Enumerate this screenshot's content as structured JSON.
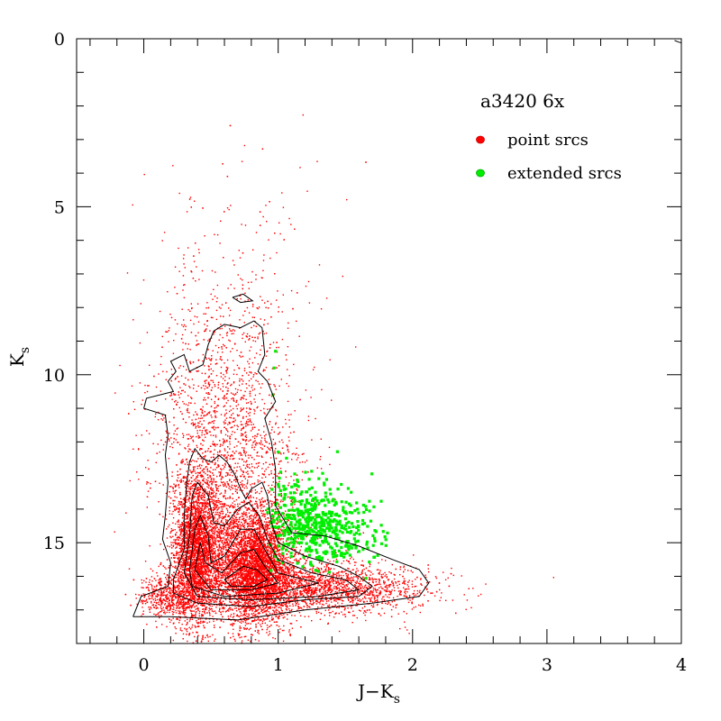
{
  "chart_data": {
    "type": "scatter",
    "title": "a3420 6x",
    "xlabel": "J−K",
    "xlabel_sub": "s",
    "ylabel": "K",
    "ylabel_sub": "s",
    "xlim": [
      -0.5,
      4
    ],
    "ylim": [
      18,
      0
    ],
    "y_inverted": true,
    "x_ticks": [
      0,
      1,
      2,
      3,
      4
    ],
    "x_tick_labels": [
      "0",
      "1",
      "2",
      "3",
      "4"
    ],
    "y_ticks": [
      0,
      5,
      10,
      15
    ],
    "y_tick_labels": [
      "0",
      "5",
      "10",
      "15"
    ],
    "grid": false,
    "legend_position": "top-right",
    "legend": [
      {
        "label": "point srcs",
        "color": "#ff0000"
      },
      {
        "label": "extended srcs",
        "color": "#00ee00"
      }
    ],
    "series": [
      {
        "name": "point srcs",
        "color": "#ff0000",
        "marker": "dot",
        "clusters": [
          {
            "cx": 0.4,
            "cy": 15.2,
            "sx": 0.09,
            "sy": 1.1,
            "w": 0.26
          },
          {
            "cx": 0.82,
            "cy": 15.7,
            "sx": 0.14,
            "sy": 0.85,
            "w": 0.34
          },
          {
            "cx": 0.65,
            "cy": 12.8,
            "sx": 0.26,
            "sy": 1.5,
            "w": 0.12
          },
          {
            "cx": 1.15,
            "cy": 16.3,
            "sx": 0.35,
            "sy": 0.35,
            "w": 0.12
          },
          {
            "cx": 1.55,
            "cy": 16.4,
            "sx": 0.35,
            "sy": 0.4,
            "w": 0.06
          },
          {
            "cx": 0.55,
            "cy": 9.8,
            "sx": 0.25,
            "sy": 1.3,
            "w": 0.04
          },
          {
            "cx": 0.7,
            "cy": 7.0,
            "sx": 0.35,
            "sy": 1.6,
            "w": 0.015
          },
          {
            "cx": 0.2,
            "cy": 16.6,
            "sx": 0.12,
            "sy": 0.35,
            "w": 0.05
          }
        ]
      },
      {
        "name": "extended srcs",
        "color": "#00ee00",
        "marker": "dot",
        "clusters": [
          {
            "cx": 1.22,
            "cy": 14.3,
            "sx": 0.2,
            "sy": 0.65,
            "w": 0.75
          },
          {
            "cx": 1.45,
            "cy": 14.9,
            "sx": 0.2,
            "sy": 0.4,
            "w": 0.25
          }
        ],
        "extra_points": [
          {
            "x": 0.98,
            "y": 9.3
          },
          {
            "x": 0.97,
            "y": 9.8
          },
          {
            "x": 0.96,
            "y": 10.6
          },
          {
            "x": 1.0,
            "y": 12.3
          }
        ]
      }
    ],
    "density_contours": [
      [
        [
          -0.08,
          17.2
        ],
        [
          -0.02,
          16.6
        ],
        [
          0.18,
          16.3
        ],
        [
          0.2,
          15.6
        ],
        [
          0.14,
          14.9
        ],
        [
          0.16,
          14.2
        ],
        [
          0.18,
          13.2
        ],
        [
          0.16,
          12.4
        ],
        [
          0.18,
          11.8
        ],
        [
          0.16,
          11.2
        ],
        [
          0.0,
          11.0
        ],
        [
          0.02,
          10.7
        ],
        [
          0.22,
          10.5
        ],
        [
          0.18,
          10.2
        ],
        [
          0.24,
          9.9
        ],
        [
          0.2,
          9.6
        ],
        [
          0.3,
          9.4
        ],
        [
          0.34,
          9.9
        ],
        [
          0.44,
          9.7
        ],
        [
          0.48,
          9.1
        ],
        [
          0.52,
          8.7
        ],
        [
          0.6,
          8.5
        ],
        [
          0.72,
          8.6
        ],
        [
          0.82,
          8.4
        ],
        [
          0.88,
          8.6
        ],
        [
          0.9,
          9.4
        ],
        [
          0.85,
          9.9
        ],
        [
          0.92,
          10.2
        ],
        [
          0.98,
          10.8
        ],
        [
          0.9,
          11.3
        ],
        [
          0.95,
          12.0
        ],
        [
          0.98,
          12.8
        ],
        [
          0.98,
          13.9
        ],
        [
          1.1,
          14.7
        ],
        [
          1.35,
          14.8
        ],
        [
          1.6,
          15.1
        ],
        [
          1.85,
          15.5
        ],
        [
          2.05,
          15.8
        ],
        [
          2.12,
          16.2
        ],
        [
          2.05,
          16.6
        ],
        [
          1.7,
          16.8
        ],
        [
          1.2,
          17.0
        ],
        [
          0.7,
          17.3
        ],
        [
          0.2,
          17.2
        ],
        [
          -0.08,
          17.2
        ]
      ],
      [
        [
          0.22,
          16.1
        ],
        [
          0.3,
          15.2
        ],
        [
          0.3,
          14.2
        ],
        [
          0.32,
          13.2
        ],
        [
          0.34,
          12.6
        ],
        [
          0.38,
          12.2
        ],
        [
          0.44,
          12.5
        ],
        [
          0.5,
          12.6
        ],
        [
          0.56,
          12.4
        ],
        [
          0.62,
          12.6
        ],
        [
          0.68,
          13.0
        ],
        [
          0.72,
          13.4
        ],
        [
          0.76,
          13.7
        ],
        [
          0.8,
          13.4
        ],
        [
          0.88,
          13.2
        ],
        [
          0.92,
          13.6
        ],
        [
          0.95,
          14.4
        ],
        [
          1.0,
          15.0
        ],
        [
          1.2,
          15.4
        ],
        [
          1.45,
          15.7
        ],
        [
          1.6,
          16.0
        ],
        [
          1.7,
          16.3
        ],
        [
          1.6,
          16.6
        ],
        [
          1.2,
          16.7
        ],
        [
          0.8,
          16.9
        ],
        [
          0.4,
          16.8
        ],
        [
          0.22,
          16.5
        ],
        [
          0.22,
          16.1
        ]
      ],
      [
        [
          0.3,
          15.9
        ],
        [
          0.34,
          14.8
        ],
        [
          0.36,
          13.6
        ],
        [
          0.4,
          13.2
        ],
        [
          0.48,
          13.6
        ],
        [
          0.52,
          14.4
        ],
        [
          0.6,
          14.5
        ],
        [
          0.7,
          14.0
        ],
        [
          0.78,
          13.8
        ],
        [
          0.86,
          14.2
        ],
        [
          0.92,
          14.9
        ],
        [
          1.0,
          15.5
        ],
        [
          1.25,
          15.9
        ],
        [
          1.5,
          16.1
        ],
        [
          1.6,
          16.4
        ],
        [
          1.3,
          16.6
        ],
        [
          0.8,
          16.7
        ],
        [
          0.4,
          16.6
        ],
        [
          0.3,
          15.9
        ]
      ],
      [
        [
          0.34,
          15.8
        ],
        [
          0.38,
          14.6
        ],
        [
          0.42,
          14.2
        ],
        [
          0.48,
          14.8
        ],
        [
          0.5,
          15.6
        ],
        [
          0.6,
          15.4
        ],
        [
          0.72,
          14.6
        ],
        [
          0.82,
          14.6
        ],
        [
          0.9,
          15.2
        ],
        [
          1.0,
          15.9
        ],
        [
          1.3,
          16.2
        ],
        [
          1.0,
          16.5
        ],
        [
          0.6,
          16.6
        ],
        [
          0.36,
          16.3
        ],
        [
          0.34,
          15.8
        ]
      ],
      [
        [
          0.38,
          15.8
        ],
        [
          0.42,
          15.0
        ],
        [
          0.46,
          15.6
        ],
        [
          0.58,
          15.9
        ],
        [
          0.72,
          15.3
        ],
        [
          0.82,
          15.2
        ],
        [
          0.9,
          15.7
        ],
        [
          1.0,
          16.2
        ],
        [
          0.8,
          16.4
        ],
        [
          0.5,
          16.4
        ],
        [
          0.38,
          15.8
        ]
      ],
      [
        [
          0.6,
          16.1
        ],
        [
          0.74,
          15.7
        ],
        [
          0.84,
          15.8
        ],
        [
          0.92,
          16.1
        ],
        [
          0.82,
          16.3
        ],
        [
          0.65,
          16.3
        ],
        [
          0.6,
          16.1
        ]
      ],
      [
        [
          0.66,
          7.7
        ],
        [
          0.74,
          7.6
        ],
        [
          0.81,
          7.8
        ],
        [
          0.72,
          7.85
        ],
        [
          0.66,
          7.7
        ]
      ],
      [
        [
          3.95,
          0.05
        ],
        [
          3.98,
          0.1
        ],
        [
          4.0,
          0.12
        ]
      ]
    ]
  }
}
